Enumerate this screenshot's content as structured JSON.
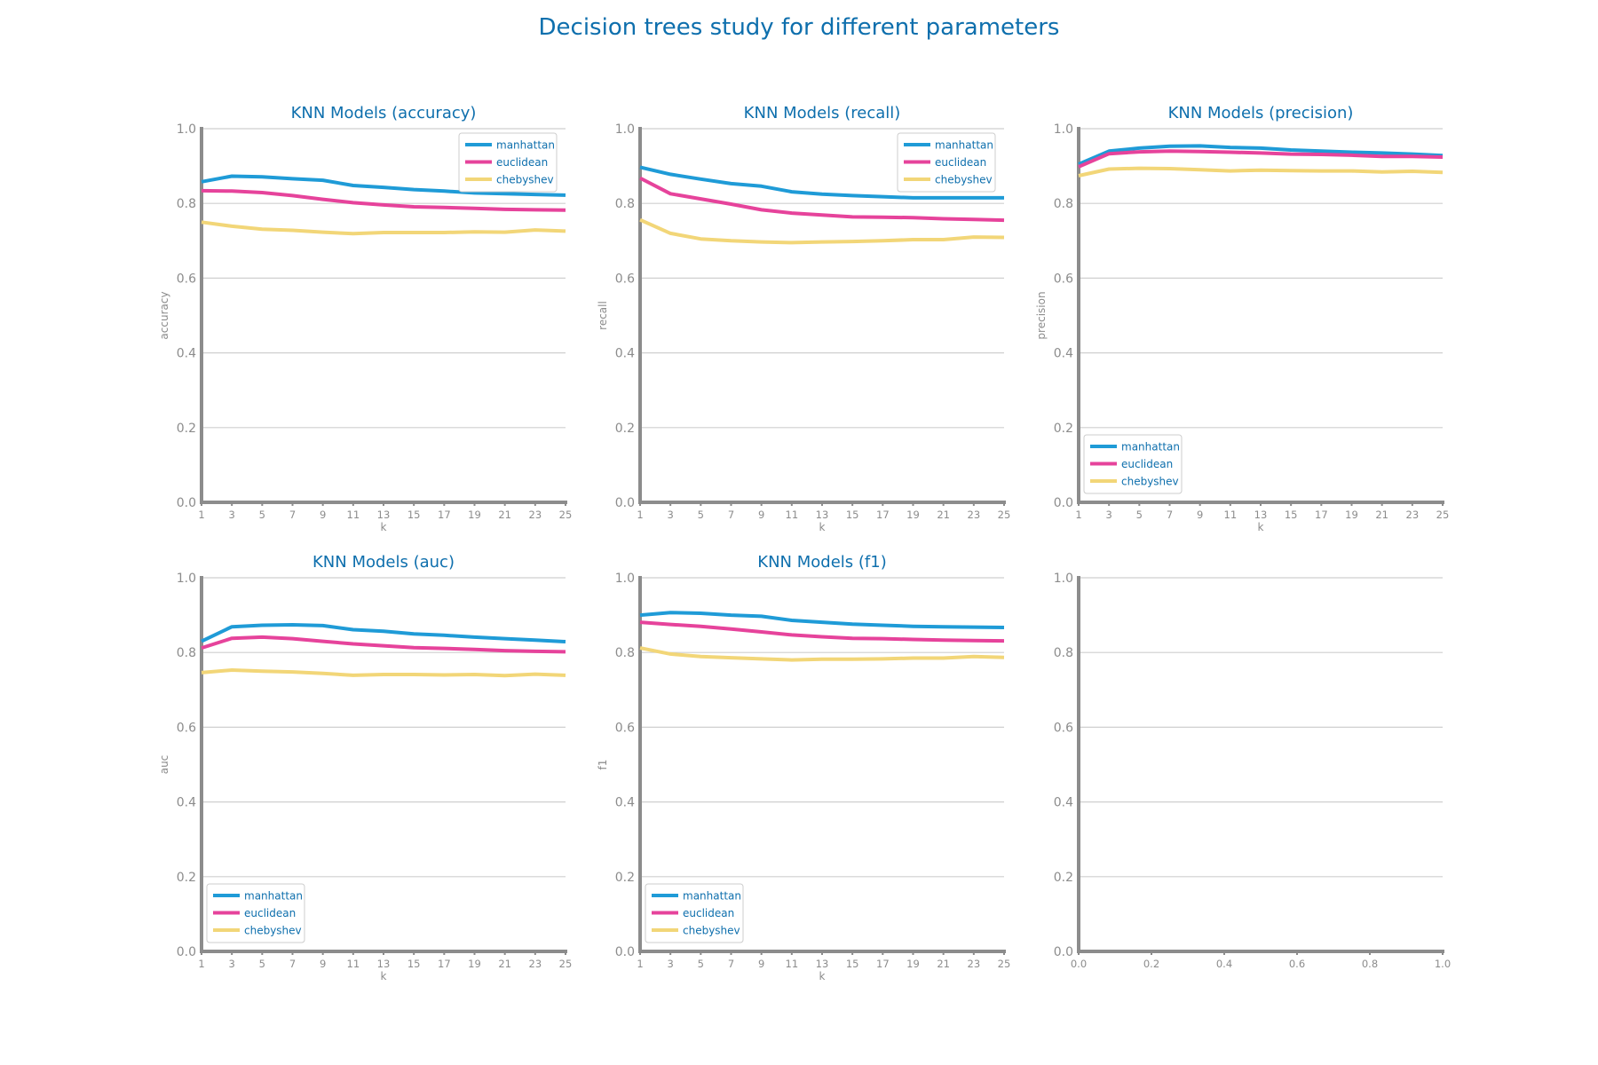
{
  "figure": {
    "suptitle": "Decision trees study for different parameters",
    "colors": {
      "title": "#0e6fad",
      "axis": "#8c8c8c",
      "grid": "#cfcfcf",
      "tick_text": "#8c8c8c",
      "legend_text": "#0e6fad"
    }
  },
  "chart_data": [
    {
      "type": "line",
      "title": "KNN Models (accuracy)",
      "xlabel": "k",
      "ylabel": "accuracy",
      "x": [
        1,
        3,
        5,
        7,
        9,
        11,
        13,
        15,
        17,
        19,
        21,
        23,
        25
      ],
      "xticks": [
        "1",
        "3",
        "5",
        "7",
        "9",
        "11",
        "13",
        "15",
        "17",
        "19",
        "21",
        "23",
        "25"
      ],
      "yticks": [
        "0.0",
        "0.2",
        "0.4",
        "0.6",
        "0.8",
        "1.0"
      ],
      "xlim": [
        1,
        25
      ],
      "ylim": [
        0,
        1
      ],
      "grid": "horizontal",
      "legend": "upper-right",
      "series": [
        {
          "name": "manhattan",
          "color": "#1f9bd7",
          "values": [
            0.858,
            0.873,
            0.871,
            0.866,
            0.862,
            0.848,
            0.843,
            0.837,
            0.833,
            0.828,
            0.826,
            0.824,
            0.822
          ]
        },
        {
          "name": "euclidean",
          "color": "#e6439b",
          "values": [
            0.834,
            0.833,
            0.829,
            0.821,
            0.811,
            0.802,
            0.796,
            0.791,
            0.789,
            0.787,
            0.784,
            0.783,
            0.782
          ]
        },
        {
          "name": "chebyshev",
          "color": "#f2d678",
          "values": [
            0.75,
            0.739,
            0.731,
            0.728,
            0.723,
            0.719,
            0.722,
            0.722,
            0.722,
            0.724,
            0.723,
            0.729,
            0.726
          ]
        }
      ]
    },
    {
      "type": "line",
      "title": "KNN Models (recall)",
      "xlabel": "k",
      "ylabel": "recall",
      "x": [
        1,
        3,
        5,
        7,
        9,
        11,
        13,
        15,
        17,
        19,
        21,
        23,
        25
      ],
      "xticks": [
        "1",
        "3",
        "5",
        "7",
        "9",
        "11",
        "13",
        "15",
        "17",
        "19",
        "21",
        "23",
        "25"
      ],
      "yticks": [
        "0.0",
        "0.2",
        "0.4",
        "0.6",
        "0.8",
        "1.0"
      ],
      "xlim": [
        1,
        25
      ],
      "ylim": [
        0,
        1
      ],
      "grid": "horizontal",
      "legend": "upper-right",
      "series": [
        {
          "name": "manhattan",
          "color": "#1f9bd7",
          "values": [
            0.897,
            0.878,
            0.865,
            0.853,
            0.846,
            0.831,
            0.825,
            0.821,
            0.818,
            0.815,
            0.815,
            0.815,
            0.815
          ]
        },
        {
          "name": "euclidean",
          "color": "#e6439b",
          "values": [
            0.868,
            0.826,
            0.812,
            0.798,
            0.783,
            0.774,
            0.769,
            0.764,
            0.763,
            0.762,
            0.759,
            0.757,
            0.755
          ]
        },
        {
          "name": "chebyshev",
          "color": "#f2d678",
          "values": [
            0.756,
            0.72,
            0.705,
            0.7,
            0.697,
            0.695,
            0.697,
            0.698,
            0.7,
            0.703,
            0.703,
            0.71,
            0.709
          ]
        }
      ]
    },
    {
      "type": "line",
      "title": "KNN Models (precision)",
      "xlabel": "k",
      "ylabel": "precision",
      "x": [
        1,
        3,
        5,
        7,
        9,
        11,
        13,
        15,
        17,
        19,
        21,
        23,
        25
      ],
      "xticks": [
        "1",
        "3",
        "5",
        "7",
        "9",
        "11",
        "13",
        "15",
        "17",
        "19",
        "21",
        "23",
        "25"
      ],
      "yticks": [
        "0.0",
        "0.2",
        "0.4",
        "0.6",
        "0.8",
        "1.0"
      ],
      "xlim": [
        1,
        25
      ],
      "ylim": [
        0,
        1
      ],
      "grid": "horizontal",
      "legend": "lower-left",
      "series": [
        {
          "name": "manhattan",
          "color": "#1f9bd7",
          "values": [
            0.905,
            0.94,
            0.948,
            0.953,
            0.954,
            0.95,
            0.948,
            0.943,
            0.94,
            0.937,
            0.935,
            0.932,
            0.928
          ]
        },
        {
          "name": "euclidean",
          "color": "#e6439b",
          "values": [
            0.898,
            0.933,
            0.938,
            0.94,
            0.939,
            0.937,
            0.935,
            0.932,
            0.931,
            0.929,
            0.926,
            0.926,
            0.924
          ]
        },
        {
          "name": "chebyshev",
          "color": "#f2d678",
          "values": [
            0.874,
            0.892,
            0.894,
            0.893,
            0.89,
            0.887,
            0.889,
            0.888,
            0.887,
            0.887,
            0.884,
            0.886,
            0.883
          ]
        }
      ]
    },
    {
      "type": "line",
      "title": "KNN Models (auc)",
      "xlabel": "k",
      "ylabel": "auc",
      "x": [
        1,
        3,
        5,
        7,
        9,
        11,
        13,
        15,
        17,
        19,
        21,
        23,
        25
      ],
      "xticks": [
        "1",
        "3",
        "5",
        "7",
        "9",
        "11",
        "13",
        "15",
        "17",
        "19",
        "21",
        "23",
        "25"
      ],
      "yticks": [
        "0.0",
        "0.2",
        "0.4",
        "0.6",
        "0.8",
        "1.0"
      ],
      "xlim": [
        1,
        25
      ],
      "ylim": [
        0,
        1
      ],
      "grid": "horizontal",
      "legend": "lower-left",
      "series": [
        {
          "name": "manhattan",
          "color": "#1f9bd7",
          "values": [
            0.83,
            0.869,
            0.873,
            0.874,
            0.872,
            0.861,
            0.857,
            0.85,
            0.846,
            0.841,
            0.837,
            0.833,
            0.829
          ]
        },
        {
          "name": "euclidean",
          "color": "#e6439b",
          "values": [
            0.812,
            0.838,
            0.841,
            0.837,
            0.83,
            0.823,
            0.818,
            0.813,
            0.811,
            0.808,
            0.805,
            0.803,
            0.802
          ]
        },
        {
          "name": "chebyshev",
          "color": "#f2d678",
          "values": [
            0.746,
            0.753,
            0.75,
            0.748,
            0.744,
            0.739,
            0.741,
            0.741,
            0.74,
            0.741,
            0.738,
            0.742,
            0.739
          ]
        }
      ]
    },
    {
      "type": "line",
      "title": "KNN Models (f1)",
      "xlabel": "k",
      "ylabel": "f1",
      "x": [
        1,
        3,
        5,
        7,
        9,
        11,
        13,
        15,
        17,
        19,
        21,
        23,
        25
      ],
      "xticks": [
        "1",
        "3",
        "5",
        "7",
        "9",
        "11",
        "13",
        "15",
        "17",
        "19",
        "21",
        "23",
        "25"
      ],
      "yticks": [
        "0.0",
        "0.2",
        "0.4",
        "0.6",
        "0.8",
        "1.0"
      ],
      "xlim": [
        1,
        25
      ],
      "ylim": [
        0,
        1
      ],
      "grid": "horizontal",
      "legend": "lower-left",
      "series": [
        {
          "name": "manhattan",
          "color": "#1f9bd7",
          "values": [
            0.9,
            0.907,
            0.905,
            0.9,
            0.897,
            0.886,
            0.881,
            0.876,
            0.873,
            0.87,
            0.869,
            0.868,
            0.867
          ]
        },
        {
          "name": "euclidean",
          "color": "#e6439b",
          "values": [
            0.881,
            0.875,
            0.87,
            0.863,
            0.855,
            0.847,
            0.842,
            0.838,
            0.837,
            0.835,
            0.833,
            0.832,
            0.831
          ]
        },
        {
          "name": "chebyshev",
          "color": "#f2d678",
          "values": [
            0.812,
            0.796,
            0.789,
            0.786,
            0.783,
            0.78,
            0.782,
            0.782,
            0.783,
            0.785,
            0.785,
            0.789,
            0.787
          ]
        }
      ]
    },
    {
      "type": "line",
      "title": "",
      "xlabel": "",
      "ylabel": "",
      "x": [],
      "xticks": [
        "0.0",
        "0.2",
        "0.4",
        "0.6",
        "0.8",
        "1.0"
      ],
      "yticks": [
        "0.0",
        "0.2",
        "0.4",
        "0.6",
        "0.8",
        "1.0"
      ],
      "xlim": [
        0,
        1
      ],
      "ylim": [
        0,
        1
      ],
      "grid": "horizontal",
      "legend": "none",
      "series": []
    }
  ]
}
